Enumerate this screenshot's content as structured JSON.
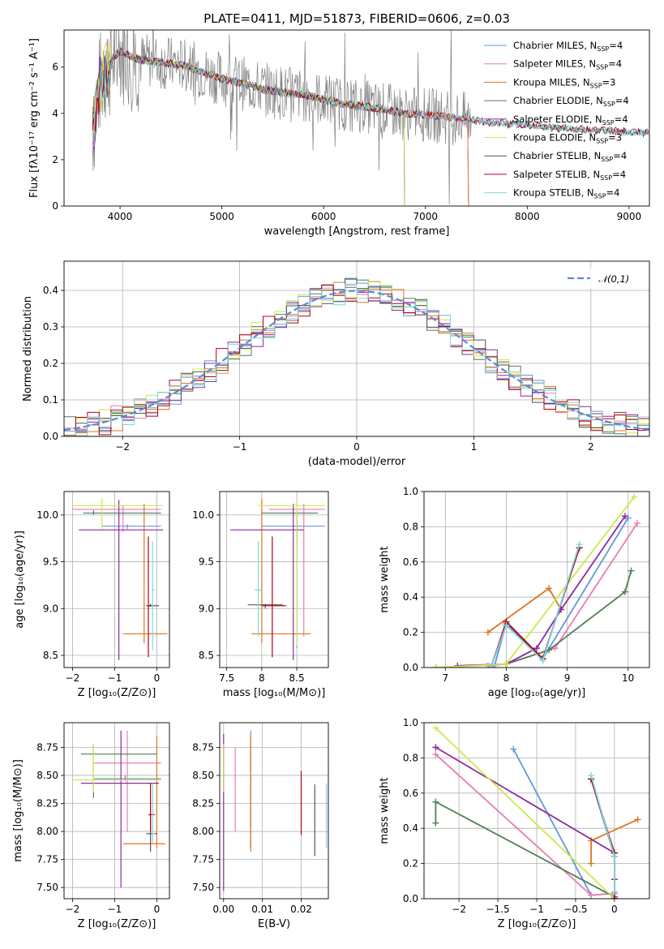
{
  "figure_title": "PLATE=0411, MJD=51873, FIBERID=0606, z=0.03",
  "colors": {
    "Chabrier MILES": "#6495dd",
    "Salpeter MILES": "#e87eb0",
    "Kroupa MILES": "#e0741e",
    "Chabrier ELODIE": "#4f7f55",
    "Salpeter ELODIE": "#8b2aa0",
    "Kroupa ELODIE": "#cde84e",
    "Chabrier STELIB": "#555555",
    "Salpeter STELIB": "#b00018",
    "Kroupa STELIB": "#7fd8e0"
  },
  "chart_data": [
    {
      "id": "spectrum",
      "type": "line",
      "title": "PLATE=0411, MJD=51873, FIBERID=0606, z=0.03",
      "xlabel": "wavelength [Angstrom, rest frame]",
      "ylabel": "Flux [fλ10⁻¹⁷ erg cm⁻² s⁻¹ A⁻¹]",
      "xlim": [
        3450,
        9200
      ],
      "ylim": [
        0,
        7.6
      ],
      "xticks": [
        4000,
        5000,
        6000,
        7000,
        8000,
        9000
      ],
      "yticks": [
        0,
        2,
        4,
        6
      ],
      "legend_position": "top-right",
      "data_color": "#808080",
      "model_envelope": {
        "x": [
          3730,
          3800,
          3850,
          3900,
          3950,
          4000,
          4100,
          4200,
          4400,
          4600,
          4800,
          5000,
          5200,
          5400,
          5600,
          5800,
          6000,
          6200,
          6400,
          6600,
          6800,
          7000,
          7200,
          7400,
          7600,
          7800,
          8000,
          8200,
          8400,
          8600,
          8800,
          9000,
          9200
        ],
        "y": [
          3.2,
          5.2,
          5.8,
          6.1,
          6.5,
          6.7,
          6.5,
          6.3,
          6.2,
          6.1,
          5.8,
          5.5,
          5.3,
          5.05,
          4.9,
          4.8,
          4.6,
          4.4,
          4.3,
          4.15,
          4.0,
          3.95,
          3.85,
          3.75,
          3.62,
          3.55,
          3.5,
          3.4,
          3.35,
          3.3,
          3.25,
          3.2,
          3.15
        ]
      },
      "series": [
        {
          "name": "Chabrier MILES",
          "label_suffix": "4",
          "x_end": 7420
        },
        {
          "name": "Salpeter MILES",
          "label_suffix": "4",
          "x_end": 7420
        },
        {
          "name": "Kroupa MILES",
          "label_suffix": "3",
          "x_end": 7420
        },
        {
          "name": "Chabrier ELODIE",
          "label_suffix": "4",
          "x_end": 6790
        },
        {
          "name": "Salpeter ELODIE",
          "label_suffix": "4",
          "x_end": 6790
        },
        {
          "name": "Kroupa ELODIE",
          "label_suffix": "3",
          "x_end": 6790
        },
        {
          "name": "Chabrier STELIB",
          "label_suffix": "4",
          "x_end": 9200
        },
        {
          "name": "Salpeter STELIB",
          "label_suffix": "4",
          "x_end": 9200
        },
        {
          "name": "Kroupa STELIB",
          "label_suffix": "4",
          "x_end": 9200
        }
      ]
    },
    {
      "id": "residuals",
      "type": "line",
      "xlabel": "(data-model)/error",
      "ylabel": "Normed distribution",
      "xlim": [
        -2.5,
        2.5
      ],
      "ylim": [
        0,
        0.48
      ],
      "xticks": [
        -2,
        -1,
        0,
        1,
        2
      ],
      "yticks": [
        0.0,
        0.1,
        0.2,
        0.3,
        0.4
      ],
      "legend_position": "top-right",
      "reference_curve": {
        "name": "𝒩(0,1)",
        "color": "#5a8ad8"
      },
      "bin_width": 0.1
    },
    {
      "id": "age-vs-Z",
      "type": "scatter",
      "xlabel": "Z [log₁₀(Z/Z⊙)]",
      "ylabel": "age  [log₁₀(age/yr)]",
      "xlim": [
        -2.2,
        0.3
      ],
      "ylim": [
        8.37,
        10.25
      ],
      "xticks": [
        -2,
        -1,
        0
      ],
      "yticks": [
        8.5,
        9.0,
        9.5,
        10.0
      ]
    },
    {
      "id": "age-vs-mass",
      "type": "scatter",
      "xlabel": "mass [log₁₀(M/M⊙)]",
      "xlim": [
        7.4,
        8.95
      ],
      "ylim": [
        8.37,
        10.25
      ],
      "xticks": [
        7.5,
        8.0,
        8.5
      ],
      "yticks": [
        8.5,
        9.0,
        9.5,
        10.0
      ]
    },
    {
      "id": "mass-weight-vs-age",
      "type": "line",
      "xlabel": "age  [log₁₀(age/yr)]",
      "ylabel": "mass weight",
      "xlim": [
        6.65,
        10.35
      ],
      "ylim": [
        0,
        1.0
      ],
      "xticks": [
        7,
        8,
        9,
        10
      ],
      "yticks": [
        0.0,
        0.2,
        0.4,
        0.6,
        0.8,
        1.0
      ]
    },
    {
      "id": "mass-vs-Z",
      "type": "scatter",
      "xlabel": "Z [log₁₀(Z/Z⊙)]",
      "ylabel": "mass [log₁₀(M/M⊙)]",
      "xlim": [
        -2.2,
        0.3
      ],
      "ylim": [
        7.4,
        8.97
      ],
      "xticks": [
        -2,
        -1,
        0
      ],
      "yticks": [
        7.5,
        7.75,
        8.0,
        8.25,
        8.5,
        8.75
      ]
    },
    {
      "id": "mass-vs-EBV",
      "type": "scatter",
      "xlabel": "E(B-V)",
      "xlim": [
        -0.001,
        0.027
      ],
      "ylim": [
        7.4,
        8.97
      ],
      "xticks": [
        0.0,
        0.01,
        0.02
      ],
      "xtick_labels": [
        "0.00",
        "0.01",
        "0.02"
      ],
      "yticks": [
        7.5,
        7.75,
        8.0,
        8.25,
        8.5,
        8.75
      ]
    },
    {
      "id": "mass-weight-vs-Z",
      "type": "line",
      "xlabel": "Z [log₁₀(Z/Z⊙)]",
      "ylabel": "mass weight",
      "xlim": [
        -2.45,
        0.45
      ],
      "ylim": [
        0,
        1.0
      ],
      "xticks": [
        -2.0,
        -1.5,
        -1.0,
        -0.5,
        0.0
      ],
      "yticks": [
        0.0,
        0.2,
        0.4,
        0.6,
        0.8,
        1.0
      ]
    }
  ],
  "stats": {
    "age_Z": [
      {
        "s": "Chabrier MILES",
        "x": -0.7,
        "y": 9.88,
        "xe": [
          -1.3,
          0.1
        ],
        "ye": [
          9.85,
          9.9
        ]
      },
      {
        "s": "Salpeter MILES",
        "x": -0.8,
        "y": 10.06,
        "xe": [
          -2.0,
          0.1
        ],
        "ye": [
          9.82,
          10.1
        ]
      },
      {
        "s": "Kroupa MILES",
        "x": -0.3,
        "y": 8.73,
        "xe": [
          -0.8,
          0.25
        ],
        "ye": [
          8.63,
          10.12
        ]
      },
      {
        "s": "Chabrier ELODIE",
        "x": -1.5,
        "y": 10.02,
        "xe": [
          -1.75,
          0.1
        ],
        "ye": [
          10.0,
          10.05
        ]
      },
      {
        "s": "Salpeter ELODIE",
        "x": -0.9,
        "y": 9.84,
        "xe": [
          -1.85,
          0.15
        ],
        "ye": [
          8.45,
          10.16
        ]
      },
      {
        "s": "Kroupa ELODIE",
        "x": -1.3,
        "y": 10.1,
        "xe": [
          -2.0,
          0.15
        ],
        "ye": [
          9.85,
          10.18
        ]
      },
      {
        "s": "Chabrier STELIB",
        "x": -0.15,
        "y": 9.03,
        "xe": [
          -0.25,
          0.05
        ],
        "ye": [
          9.02,
          9.05
        ]
      },
      {
        "s": "Salpeter STELIB",
        "x": -0.2,
        "y": 9.03,
        "xe": [
          -0.22,
          -0.15
        ],
        "ye": [
          8.48,
          9.77
        ]
      },
      {
        "s": "Kroupa STELIB",
        "x": -0.1,
        "y": 9.2,
        "xe": [
          -0.12,
          -0.05
        ],
        "ye": [
          8.55,
          9.72
        ]
      }
    ],
    "age_mass": [
      {
        "s": "Chabrier MILES",
        "x": 8.5,
        "y": 9.88,
        "xe": [
          8.0,
          8.9
        ],
        "ye": [
          8.58,
          10.0
        ]
      },
      {
        "s": "Salpeter MILES",
        "x": 8.6,
        "y": 10.06,
        "xe": [
          8.1,
          8.9
        ],
        "ye": [
          8.7,
          10.12
        ]
      },
      {
        "s": "Kroupa MILES",
        "x": 8.0,
        "y": 8.73,
        "xe": [
          7.85,
          8.7
        ],
        "ye": [
          8.63,
          10.17
        ]
      },
      {
        "s": "Chabrier ELODIE",
        "x": 8.5,
        "y": 10.02,
        "xe": [
          8.0,
          8.8
        ],
        "ye": [
          9.7,
          10.05
        ]
      },
      {
        "s": "Salpeter ELODIE",
        "x": 8.45,
        "y": 9.84,
        "xe": [
          7.55,
          8.6
        ],
        "ye": [
          8.45,
          10.12
        ]
      },
      {
        "s": "Kroupa ELODIE",
        "x": 8.5,
        "y": 10.1,
        "xe": [
          7.95,
          8.9
        ],
        "ye": [
          8.6,
          10.12
        ]
      },
      {
        "s": "Chabrier STELIB",
        "x": 8.05,
        "y": 9.04,
        "xe": [
          7.8,
          8.3
        ],
        "ye": [
          9.0,
          9.05
        ]
      },
      {
        "s": "Salpeter STELIB",
        "x": 8.15,
        "y": 9.03,
        "xe": [
          8.0,
          8.35
        ],
        "ye": [
          8.48,
          9.77
        ]
      },
      {
        "s": "Kroupa STELIB",
        "x": 7.95,
        "y": 9.2,
        "xe": [
          7.9,
          8.0
        ],
        "ye": [
          8.7,
          9.72
        ]
      }
    ],
    "mass_Z": [
      {
        "s": "Chabrier MILES",
        "x": -0.75,
        "y": 8.47,
        "xe": [
          -1.5,
          0.1
        ],
        "ye": [
          8.45,
          8.5
        ]
      },
      {
        "s": "Salpeter MILES",
        "x": -0.7,
        "y": 8.61,
        "xe": [
          -1.5,
          0.1
        ],
        "ye": [
          8.0,
          8.9
        ]
      },
      {
        "s": "Kroupa MILES",
        "x": 0.0,
        "y": 7.89,
        "xe": [
          -0.8,
          0.2
        ],
        "ye": [
          7.85,
          8.85
        ]
      },
      {
        "s": "Chabrier ELODIE",
        "x": -1.5,
        "y": 8.69,
        "xe": [
          -1.8,
          0.0
        ],
        "ye": [
          8.3,
          8.78
        ]
      },
      {
        "s": "Salpeter ELODIE",
        "x": -0.85,
        "y": 8.43,
        "xe": [
          -1.8,
          0.05
        ],
        "ye": [
          7.5,
          8.9
        ]
      },
      {
        "s": "Kroupa ELODIE",
        "x": -1.5,
        "y": 8.46,
        "xe": [
          -2.0,
          0.1
        ],
        "ye": [
          8.35,
          8.78
        ]
      },
      {
        "s": "Chabrier STELIB",
        "x": -0.15,
        "y": 7.98,
        "xe": [
          -0.25,
          0.0
        ],
        "ye": [
          7.82,
          8.15
        ]
      },
      {
        "s": "Salpeter STELIB",
        "x": -0.15,
        "y": 8.15,
        "xe": [
          -0.2,
          -0.05
        ],
        "ye": [
          8.0,
          8.43
        ]
      },
      {
        "s": "Kroupa STELIB",
        "x": -0.1,
        "y": 7.98,
        "xe": [
          -0.12,
          -0.05
        ],
        "ye": [
          7.9,
          8.43
        ]
      }
    ],
    "mass_ebv": [
      {
        "s": "Chabrier MILES",
        "x": 0.007,
        "ye": [
          7.85,
          8.9
        ]
      },
      {
        "s": "Salpeter MILES",
        "x": 0.003,
        "ye": [
          8.0,
          8.75
        ]
      },
      {
        "s": "Kroupa MILES",
        "x": 0.007,
        "ye": [
          7.82,
          8.85
        ]
      },
      {
        "s": "Chabrier ELODIE",
        "x": 0.0,
        "ye": [
          8.35,
          8.78
        ]
      },
      {
        "s": "Salpeter ELODIE",
        "x": 0.0,
        "ye": [
          7.47,
          8.87
        ]
      },
      {
        "s": "Kroupa ELODIE",
        "x": 0.0,
        "ye": [
          8.35,
          8.78
        ]
      },
      {
        "s": "Chabrier STELIB",
        "x": 0.0235,
        "ye": [
          7.78,
          8.42
        ]
      },
      {
        "s": "Salpeter STELIB",
        "x": 0.02,
        "ye": [
          7.97,
          8.54
        ]
      },
      {
        "s": "Kroupa STELIB",
        "x": 0.0265,
        "ye": [
          7.85,
          8.43
        ]
      }
    ]
  },
  "weights": {
    "age": [
      {
        "s": "Chabrier MILES",
        "pts": [
          [
            7.8,
            0.0
          ],
          [
            8.0,
            0.25
          ],
          [
            8.6,
            0.05
          ],
          [
            10.0,
            0.85
          ]
        ]
      },
      {
        "s": "Salpeter MILES",
        "pts": [
          [
            7.7,
            0.01
          ],
          [
            8.0,
            0.02
          ],
          [
            8.8,
            0.11
          ],
          [
            10.15,
            0.82
          ]
        ]
      },
      {
        "s": "Kroupa MILES",
        "pts": [
          [
            7.7,
            0.2
          ],
          [
            8.7,
            0.45
          ],
          [
            8.9,
            0.33
          ]
        ]
      },
      {
        "s": "Chabrier ELODIE",
        "pts": [
          [
            6.85,
            0.0
          ],
          [
            8.0,
            0.02
          ],
          [
            8.7,
            0.1
          ],
          [
            9.95,
            0.43
          ],
          [
            10.05,
            0.55
          ]
        ]
      },
      {
        "s": "Salpeter ELODIE",
        "pts": [
          [
            7.2,
            0.01
          ],
          [
            8.0,
            0.02
          ],
          [
            8.5,
            0.11
          ],
          [
            8.9,
            0.33
          ],
          [
            9.95,
            0.86
          ]
        ]
      },
      {
        "s": "Kroupa ELODIE",
        "pts": [
          [
            6.85,
            0.0
          ],
          [
            8.0,
            0.02
          ],
          [
            10.1,
            0.97
          ]
        ]
      },
      {
        "s": "Chabrier STELIB",
        "pts": [
          [
            7.75,
            0.0
          ],
          [
            8.0,
            0.24
          ],
          [
            8.6,
            0.05
          ],
          [
            9.2,
            0.68
          ]
        ]
      },
      {
        "s": "Salpeter STELIB",
        "pts": [
          [
            7.75,
            0.0
          ],
          [
            8.0,
            0.26
          ],
          [
            8.6,
            0.05
          ],
          [
            9.2,
            0.68
          ]
        ]
      },
      {
        "s": "Kroupa STELIB",
        "pts": [
          [
            7.75,
            0.0
          ],
          [
            8.0,
            0.24
          ],
          [
            8.6,
            0.04
          ],
          [
            9.2,
            0.7
          ]
        ]
      }
    ],
    "Z": [
      {
        "s": "Chabrier MILES",
        "pts": [
          [
            -1.3,
            0.85
          ],
          [
            -0.3,
            0.02
          ],
          [
            0.0,
            0.03
          ]
        ]
      },
      {
        "s": "Salpeter MILES",
        "pts": [
          [
            -2.3,
            0.82
          ],
          [
            -0.3,
            0.02
          ],
          [
            0.0,
            0.03
          ]
        ]
      },
      {
        "s": "Kroupa MILES",
        "pts": [
          [
            -0.3,
            0.2
          ],
          [
            -0.3,
            0.33
          ],
          [
            0.3,
            0.45
          ]
        ]
      },
      {
        "s": "Chabrier ELODIE",
        "pts": [
          [
            -2.3,
            0.43
          ],
          [
            -2.3,
            0.55
          ],
          [
            0.0,
            0.01
          ]
        ]
      },
      {
        "s": "Salpeter ELODIE",
        "pts": [
          [
            -2.3,
            0.86
          ],
          [
            0.0,
            0.26
          ],
          [
            0.0,
            0.11
          ],
          [
            0.0,
            0.01
          ]
        ]
      },
      {
        "s": "Kroupa ELODIE",
        "pts": [
          [
            -2.3,
            0.97
          ],
          [
            0.0,
            0.0
          ]
        ]
      },
      {
        "s": "Chabrier STELIB",
        "pts": [
          [
            -0.3,
            0.68
          ],
          [
            0.0,
            0.24
          ],
          [
            0.0,
            0.0
          ]
        ]
      },
      {
        "s": "Salpeter STELIB",
        "pts": [
          [
            -0.3,
            0.68
          ],
          [
            0.0,
            0.26
          ],
          [
            0.0,
            0.0
          ]
        ]
      },
      {
        "s": "Kroupa STELIB",
        "pts": [
          [
            -0.3,
            0.7
          ],
          [
            0.0,
            0.24
          ],
          [
            0.0,
            0.04
          ]
        ]
      }
    ]
  }
}
